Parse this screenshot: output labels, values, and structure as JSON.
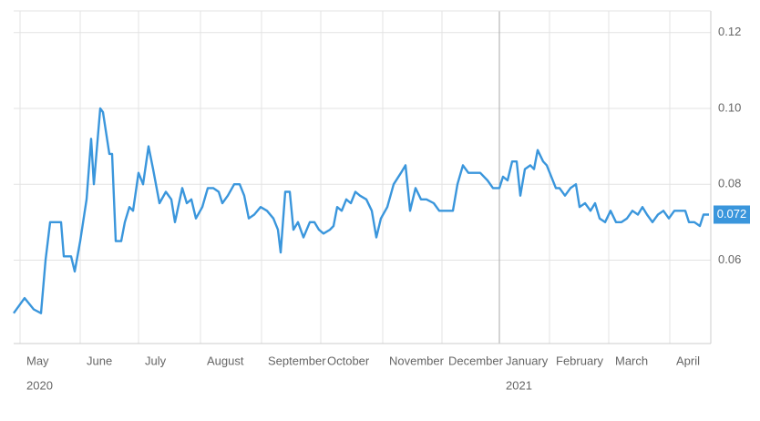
{
  "chart_data": {
    "type": "line",
    "series": [
      {
        "color": "#3a96dc",
        "x": [
          0,
          12,
          22,
          30,
          35,
          40,
          52,
          55,
          63,
          67,
          73,
          80,
          85,
          88,
          95,
          98,
          105,
          108,
          112,
          118,
          122,
          127,
          131,
          137,
          142,
          148,
          153,
          160,
          167,
          173,
          177,
          185,
          190,
          195,
          200,
          207,
          213,
          219,
          225,
          229,
          235,
          242,
          248,
          253,
          258,
          264,
          271,
          278,
          285,
          290,
          293,
          298,
          303,
          307,
          312,
          318,
          325,
          330,
          335,
          340,
          347,
          351,
          355,
          360,
          365,
          370,
          375,
          380,
          387,
          393,
          398,
          403,
          410,
          417,
          425,
          430,
          435,
          441,
          447,
          453,
          461,
          467,
          475,
          482,
          487,
          493,
          499,
          505,
          512,
          520,
          526,
          533,
          537,
          542,
          547,
          552,
          556,
          561,
          567,
          571,
          575,
          581,
          585,
          590,
          595,
          599,
          605,
          611,
          617,
          621,
          627,
          633,
          638,
          643,
          649,
          655,
          661,
          667,
          673,
          679,
          685,
          690,
          695,
          701,
          707,
          713,
          719,
          725,
          731,
          737,
          741,
          747,
          753,
          757,
          763
        ],
        "values": [
          0.046,
          0.05,
          0.047,
          0.046,
          0.06,
          0.07,
          0.07,
          0.061,
          0.061,
          0.057,
          0.065,
          0.076,
          0.092,
          0.08,
          0.1,
          0.099,
          0.088,
          0.088,
          0.065,
          0.065,
          0.07,
          0.074,
          0.073,
          0.083,
          0.08,
          0.09,
          0.084,
          0.075,
          0.078,
          0.076,
          0.07,
          0.079,
          0.075,
          0.076,
          0.071,
          0.074,
          0.079,
          0.079,
          0.078,
          0.075,
          0.077,
          0.08,
          0.08,
          0.077,
          0.071,
          0.072,
          0.074,
          0.073,
          0.071,
          0.068,
          0.062,
          0.078,
          0.078,
          0.068,
          0.07,
          0.066,
          0.07,
          0.07,
          0.068,
          0.067,
          0.068,
          0.069,
          0.074,
          0.073,
          0.076,
          0.075,
          0.078,
          0.077,
          0.076,
          0.073,
          0.066,
          0.071,
          0.074,
          0.08,
          0.083,
          0.085,
          0.073,
          0.079,
          0.076,
          0.076,
          0.075,
          0.073,
          0.073,
          0.073,
          0.08,
          0.085,
          0.083,
          0.083,
          0.083,
          0.081,
          0.079,
          0.079,
          0.082,
          0.081,
          0.086,
          0.086,
          0.077,
          0.084,
          0.085,
          0.084,
          0.089,
          0.086,
          0.085,
          0.082,
          0.079,
          0.079,
          0.077,
          0.079,
          0.08,
          0.074,
          0.075,
          0.073,
          0.075,
          0.071,
          0.07,
          0.073,
          0.07,
          0.07,
          0.071,
          0.073,
          0.072,
          0.074,
          0.072,
          0.07,
          0.072,
          0.073,
          0.071,
          0.073,
          0.073,
          0.073,
          0.07,
          0.07,
          0.069,
          0.072,
          0.072
        ]
      }
    ],
    "xlim": [
      0,
      765
    ],
    "xticks": [
      {
        "value": 7,
        "label": "May"
      },
      {
        "value": 73,
        "label": "June"
      },
      {
        "value": 137,
        "label": "July"
      },
      {
        "value": 205,
        "label": "August"
      },
      {
        "value": 272,
        "label": "September"
      },
      {
        "value": 337,
        "label": "October"
      },
      {
        "value": 405,
        "label": "November"
      },
      {
        "value": 470,
        "label": "December"
      },
      {
        "value": 533,
        "label": "January"
      },
      {
        "value": 588,
        "label": "February"
      },
      {
        "value": 653,
        "label": "March"
      },
      {
        "value": 720,
        "label": "April"
      }
    ],
    "years": [
      {
        "value": 7,
        "label": "2020"
      },
      {
        "value": 533,
        "label": "2021"
      }
    ],
    "ylim": [
      0.038,
      0.1257
    ],
    "yticks": [
      0.06,
      0.08,
      {
        "value": 0.1,
        "label": "0.10"
      },
      0.12
    ],
    "grid": true
  }
}
